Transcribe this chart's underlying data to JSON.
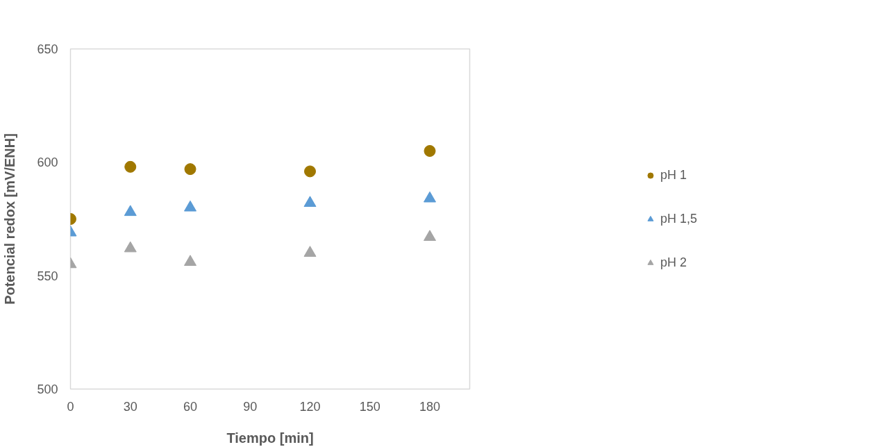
{
  "chart_data": {
    "type": "scatter",
    "xlabel": "Tiempo [min]",
    "ylabel": "Potencial redox [mV/ENH]",
    "x": [
      0,
      30,
      60,
      120,
      180
    ],
    "series": [
      {
        "name": "pH 1",
        "color": "#a07800",
        "marker": "circle",
        "values": [
          575,
          598,
          597,
          596,
          605
        ]
      },
      {
        "name": "pH 1,5",
        "color": "#5b9bd5",
        "marker": "triangle",
        "values": [
          569,
          578,
          580,
          582,
          584
        ]
      },
      {
        "name": "pH 2",
        "color": "#a5a5a5",
        "marker": "triangle",
        "values": [
          555,
          562,
          556,
          560,
          567
        ]
      }
    ],
    "xlim": [
      0,
      200
    ],
    "xticks": [
      0,
      30,
      60,
      90,
      120,
      150,
      180
    ],
    "ylim": [
      500,
      650
    ],
    "yticks": [
      500,
      550,
      600,
      650
    ],
    "grid": false,
    "legend": "right"
  }
}
